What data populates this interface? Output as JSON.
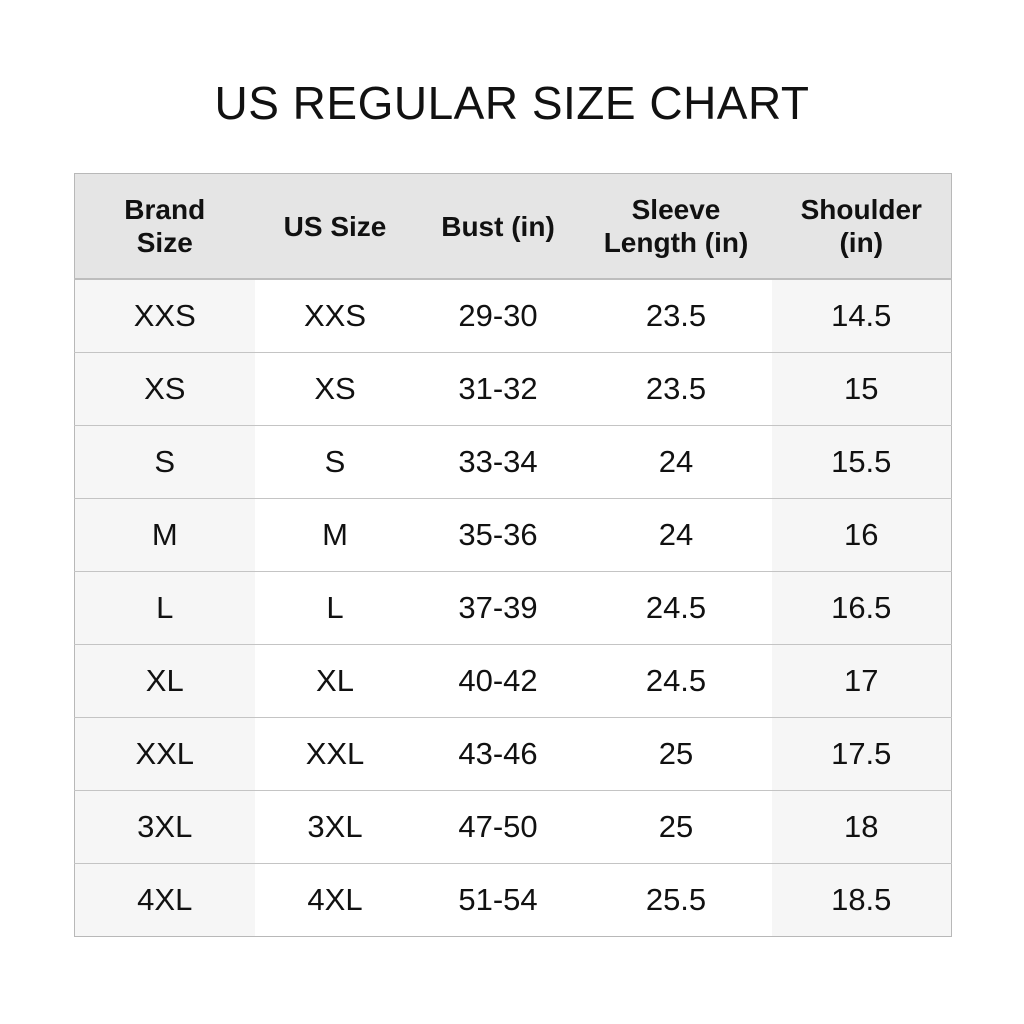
{
  "header": {
    "title": "US REGULAR SIZE CHART"
  },
  "table": {
    "columns": [
      "Brand Size",
      "US Size",
      "Bust (in)",
      "Sleeve Length (in)",
      "Shoulder (in)"
    ],
    "rows": [
      [
        "XXS",
        "XXS",
        "29-30",
        "23.5",
        "14.5"
      ],
      [
        "XS",
        "XS",
        "31-32",
        "23.5",
        "15"
      ],
      [
        "S",
        "S",
        "33-34",
        "24",
        "15.5"
      ],
      [
        "M",
        "M",
        "35-36",
        "24",
        "16"
      ],
      [
        "L",
        "L",
        "37-39",
        "24.5",
        "16.5"
      ],
      [
        "XL",
        "XL",
        "40-42",
        "24.5",
        "17"
      ],
      [
        "XXL",
        "XXL",
        "43-46",
        "25",
        "17.5"
      ],
      [
        "3XL",
        "3XL",
        "47-50",
        "25",
        "18"
      ],
      [
        "4XL",
        "4XL",
        "51-54",
        "25.5",
        "18.5"
      ]
    ]
  }
}
